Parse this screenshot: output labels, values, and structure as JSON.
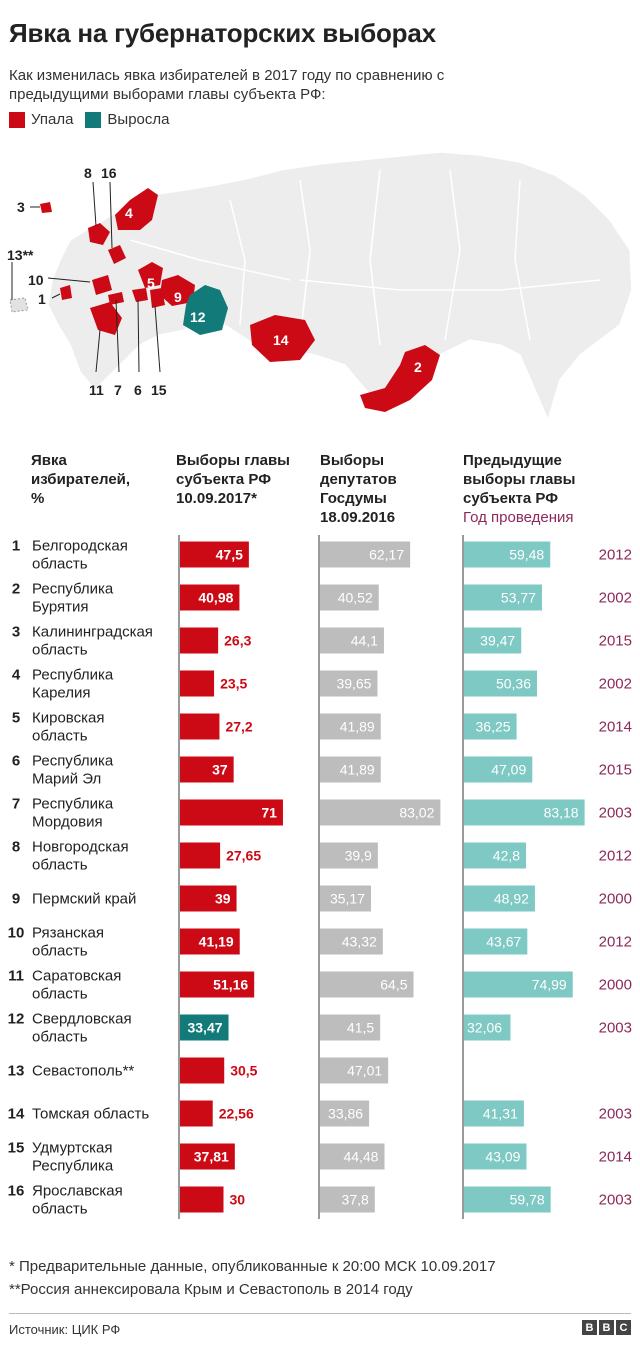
{
  "header": {
    "title": "Явка на губернаторских выборах",
    "subtitle": "Как изменилась явка избирателей в 2017 году по сравнению с предыдущими выборами главы субъекта РФ:",
    "legend": [
      {
        "label": "Упала",
        "color": "#cc0a15"
      },
      {
        "label": "Выросла",
        "color": "#137a7a"
      }
    ]
  },
  "map": {
    "labels": [
      "3",
      "8",
      "16",
      "4",
      "13**",
      "10",
      "1",
      "5",
      "9",
      "12",
      "14",
      "2",
      "11",
      "7",
      "6",
      "15"
    ]
  },
  "columns": {
    "c0": [
      "Явка",
      "избирателей,",
      "%"
    ],
    "c1": [
      "Выборы главы",
      "субъекта РФ",
      "10.09.2017*"
    ],
    "c2": [
      "Выборы",
      "депутатов",
      "Госдумы",
      "18.09.2016"
    ],
    "c3": [
      "Предыдущие",
      "выборы главы",
      "субъекта РФ"
    ],
    "c3_sub": "Год проведения"
  },
  "colors": {
    "fell": "#cc0a15",
    "rose": "#137a7a",
    "duma": "#bdbdbd",
    "prev": "#7ec9c4",
    "year": "#8b2a5a"
  },
  "chart_data": {
    "type": "bar",
    "title": "Явка на губернаторских выборах",
    "unit": "%",
    "categories": [
      [
        "Белгородская",
        "область"
      ],
      [
        "Республика",
        "Бурятия"
      ],
      [
        "Калининградская",
        "область"
      ],
      [
        "Республика",
        "Карелия"
      ],
      [
        "Кировская",
        "область"
      ],
      [
        "Республика",
        "Марий Эл"
      ],
      [
        "Республика",
        "Мордовия"
      ],
      [
        "Новгородская",
        "область"
      ],
      [
        "Пермский край"
      ],
      [
        "Рязанская",
        "область"
      ],
      [
        "Саратовская",
        "область"
      ],
      [
        "Свердловская",
        "область"
      ],
      [
        "Севастополь**"
      ],
      [
        "Томская область"
      ],
      [
        "Удмуртская",
        "Республика"
      ],
      [
        "Ярославская",
        "область"
      ]
    ],
    "series": [
      {
        "name": "Выборы главы субъекта РФ 10.09.2017*",
        "labels": [
          "47,5",
          "40,98",
          "26,3",
          "23,5",
          "27,2",
          "37",
          "71",
          "27,65",
          "39",
          "41,19",
          "51,16",
          "33,47",
          "30,5",
          "22,56",
          "37,81",
          "30"
        ],
        "values": [
          47.5,
          40.98,
          26.3,
          23.5,
          27.2,
          37,
          71,
          27.65,
          39,
          41.19,
          51.16,
          33.47,
          30.5,
          22.56,
          37.81,
          30
        ],
        "status": [
          "fell",
          "fell",
          "fell",
          "fell",
          "fell",
          "fell",
          "fell",
          "fell",
          "fell",
          "fell",
          "fell",
          "rose",
          "fell",
          "fell",
          "fell",
          "fell"
        ]
      },
      {
        "name": "Выборы депутатов Госдумы 18.09.2016",
        "labels": [
          "62,17",
          "40,52",
          "44,1",
          "39,65",
          "41,89",
          "41,89",
          "83,02",
          "39,9",
          "35,17",
          "43,32",
          "64,5",
          "41,5",
          "47,01",
          "33,86",
          "44,48",
          "37,8"
        ],
        "values": [
          62.17,
          40.52,
          44.1,
          39.65,
          41.89,
          41.89,
          83.02,
          39.9,
          35.17,
          43.32,
          64.5,
          41.5,
          47.01,
          33.86,
          44.48,
          37.8
        ]
      },
      {
        "name": "Предыдущие выборы главы субъекта РФ",
        "labels": [
          "59,48",
          "53,77",
          "39,47",
          "50,36",
          "36,25",
          "47,09",
          "83,18",
          "42,8",
          "48,92",
          "43,67",
          "74,99",
          "32,06",
          "",
          "41,31",
          "43,09",
          "59,78"
        ],
        "values": [
          59.48,
          53.77,
          39.47,
          50.36,
          36.25,
          47.09,
          83.18,
          42.8,
          48.92,
          43.67,
          74.99,
          32.06,
          null,
          41.31,
          43.09,
          59.78
        ]
      }
    ],
    "years": [
      "2012",
      "2002",
      "2015",
      "2002",
      "2014",
      "2015",
      "2003",
      "2012",
      "2000",
      "2012",
      "2000",
      "2003",
      "",
      "2003",
      "2014",
      "2003"
    ],
    "xlim": [
      0,
      100
    ]
  },
  "footnotes": [
    "*  Предварительные данные, опубликованные к 20:00 МСК 10.09.2017",
    "**Россия аннексировала Крым и Севастополь в 2014 году"
  ],
  "footer": {
    "source": "Источник: ЦИК РФ",
    "logo": [
      "B",
      "B",
      "C"
    ]
  }
}
